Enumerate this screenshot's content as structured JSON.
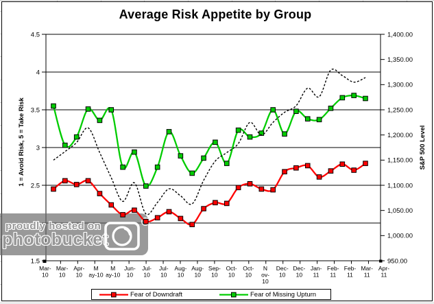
{
  "watermark": {
    "line1": "proudly hosted on",
    "line2": "photobucket",
    "reg": "®"
  },
  "chart_data": {
    "type": "line",
    "title": "Average Risk Appetite by Group",
    "y_left": {
      "label": "1 = Avoid Risk, 5 = Take Risk",
      "min": 1.5,
      "max": 4.5,
      "tick_step": 0.5,
      "tick_labels": [
        "4.5",
        "4",
        "3.5",
        "3",
        "2.5",
        "2",
        "1.5"
      ]
    },
    "y_right": {
      "label": "S&P 500 Level",
      "min": 950,
      "max": 1400,
      "tick_step": 50,
      "tick_labels": [
        "1,400.00",
        "1,350.00",
        "1,300.00",
        "1,250.00",
        "1,200.00",
        "1,150.00",
        "1,100.00",
        "1,050.00",
        "1,000.00",
        "950.00"
      ]
    },
    "x_tick_labels": [
      "Mar-10",
      "Mar-10",
      "Apr-10",
      "May-10",
      "May-10",
      "Jun-10",
      "Jul-10",
      "Jul-10",
      "Aug-10",
      "Aug-10",
      "Sep-10",
      "Oct-10",
      "Oct-10",
      "Nov-10",
      "Dec-10",
      "Dec-10",
      "Jan-11",
      "Feb-11",
      "Feb-11",
      "Mar-11",
      "Apr-11"
    ],
    "x_labels_wrapped": [
      [
        "Mar-",
        "10"
      ],
      [
        "Mar-",
        "10"
      ],
      [
        "Apr-",
        "10"
      ],
      [
        "M",
        "ay-10"
      ],
      [
        "M",
        "ay-10"
      ],
      [
        "Jun-",
        "10"
      ],
      [
        "Jul-",
        "10"
      ],
      [
        "Jul-",
        "10"
      ],
      [
        "Aug-",
        "10"
      ],
      [
        "Aug-",
        "10"
      ],
      [
        "Sep-",
        "10"
      ],
      [
        "Oct-",
        "10"
      ],
      [
        "Oct-",
        "10"
      ],
      [
        "N",
        "ov-",
        "10"
      ],
      [
        "Dec-",
        "10"
      ],
      [
        "Dec-",
        "10"
      ],
      [
        "Jan-",
        "11"
      ],
      [
        "Feb-",
        "11"
      ],
      [
        "Feb-",
        "11"
      ],
      [
        "Mar-",
        "11"
      ],
      [
        "Apr-",
        "11"
      ]
    ],
    "grid": true,
    "legend_position": "bottom",
    "series": [
      {
        "name": "Fear of Downdraft",
        "axis": "left",
        "color": "#FF0000",
        "marker": "square",
        "line_style": "solid",
        "values": [
          2.45,
          2.56,
          2.51,
          2.56,
          2.39,
          2.24,
          2.11,
          2.17,
          2.02,
          2.07,
          2.15,
          2.06,
          1.98,
          2.19,
          2.27,
          2.26,
          2.47,
          2.52,
          2.45,
          2.44,
          2.68,
          2.73,
          2.76,
          2.61,
          2.69,
          2.78,
          2.7,
          2.79
        ]
      },
      {
        "name": "Fear of Missing Upturn",
        "axis": "left",
        "color": "#00CC00",
        "marker": "square",
        "line_style": "solid",
        "values": [
          3.55,
          3.03,
          3.14,
          3.51,
          3.36,
          3.5,
          2.74,
          2.94,
          2.49,
          2.74,
          3.21,
          2.89,
          2.66,
          2.86,
          3.07,
          2.79,
          3.23,
          3.14,
          3.19,
          3.5,
          3.18,
          3.48,
          3.38,
          3.37,
          3.52,
          3.66,
          3.69,
          3.65
        ]
      },
      {
        "name": "S&P 500",
        "axis": "right",
        "color": "#000000",
        "marker": "none",
        "line_style": "dashed",
        "values": [
          1150,
          1167,
          1185,
          1214,
          1165,
          1115,
          1068,
          1105,
          1043,
          1066,
          1093,
          1079,
          1063,
          1110,
          1148,
          1165,
          1183,
          1225,
          1200,
          1225,
          1245,
          1258,
          1293,
          1276,
          1329,
          1318,
          1305,
          1314
        ]
      }
    ]
  }
}
